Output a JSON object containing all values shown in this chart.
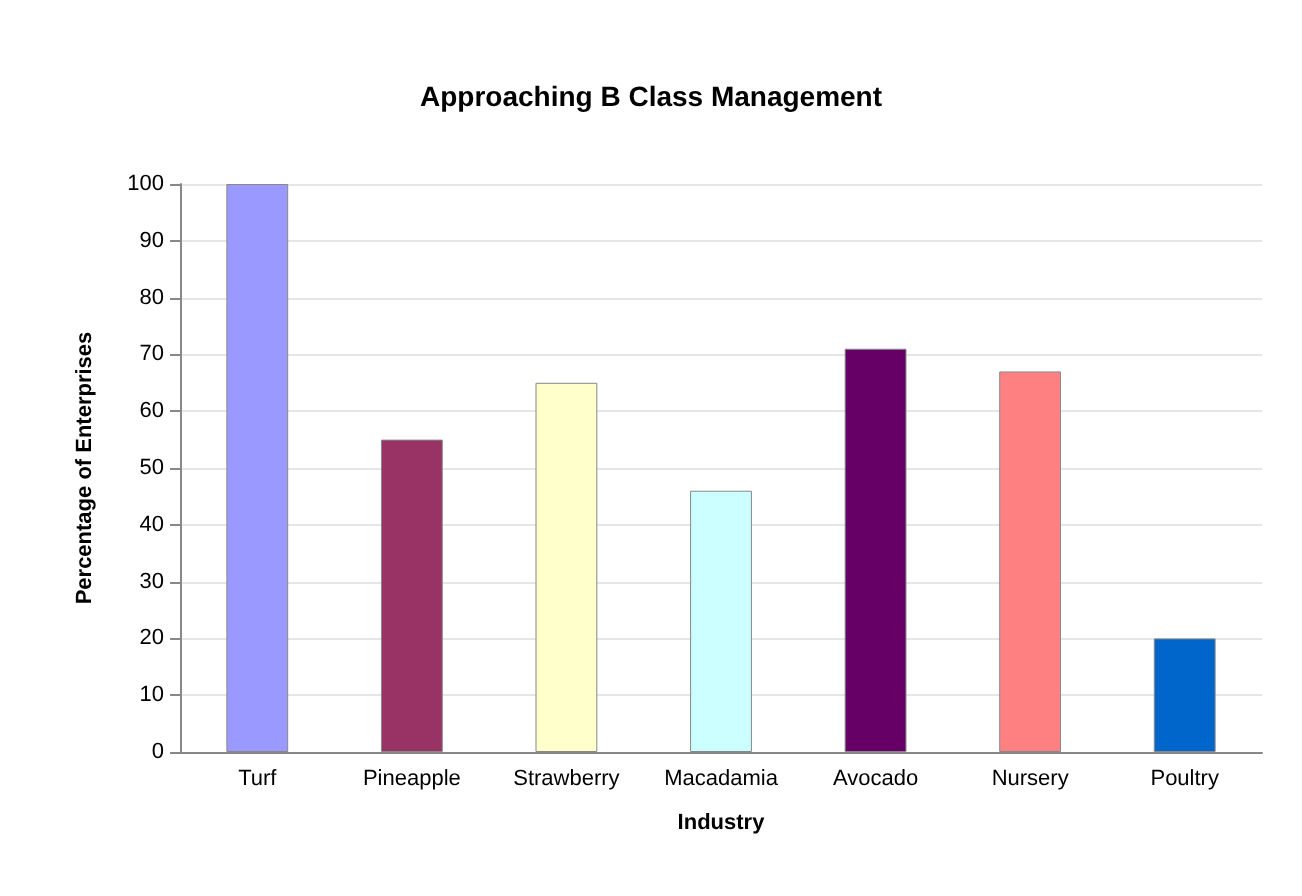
{
  "chart_data": {
    "type": "bar",
    "title": "Approaching B Class Management",
    "xlabel": "Industry",
    "ylabel": "Percentage of Enterprises",
    "categories": [
      "Turf",
      "Pineapple",
      "Strawberry",
      "Macadamia",
      "Avocado",
      "Nursery",
      "Poultry"
    ],
    "values": [
      100,
      55,
      65,
      46,
      71,
      67,
      20
    ],
    "colors": [
      "#9999ff",
      "#993366",
      "#ffffcc",
      "#ccffff",
      "#660066",
      "#ff8080",
      "#0066cc"
    ],
    "ylim": [
      0,
      100
    ],
    "yticks": [
      0,
      10,
      20,
      30,
      40,
      50,
      60,
      70,
      80,
      90,
      100
    ],
    "grid": "y"
  }
}
